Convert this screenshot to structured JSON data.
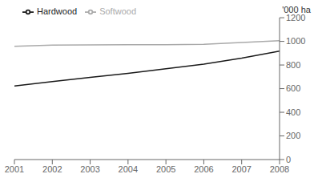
{
  "chart_data": {
    "type": "line",
    "x": [
      2001,
      2002,
      2003,
      2004,
      2005,
      2006,
      2007,
      2008
    ],
    "series": [
      {
        "name": "Hardwood",
        "color": "#1a1a1a",
        "values": [
          622,
          660,
          695,
          730,
          768,
          808,
          858,
          918
        ]
      },
      {
        "name": "Softwood",
        "color": "#aaaaaa",
        "values": [
          958,
          968,
          970,
          972,
          972,
          975,
          990,
          1005
        ]
      }
    ],
    "xlim": [
      2001,
      2008
    ],
    "xticks": [
      2001,
      2002,
      2003,
      2004,
      2005,
      2006,
      2007,
      2008
    ],
    "ylim": [
      0,
      1200
    ],
    "yticks": [
      0,
      200,
      400,
      600,
      800,
      1000,
      1200
    ],
    "ylabel": "'000 ha",
    "legend": "upper left",
    "grid": false
  }
}
